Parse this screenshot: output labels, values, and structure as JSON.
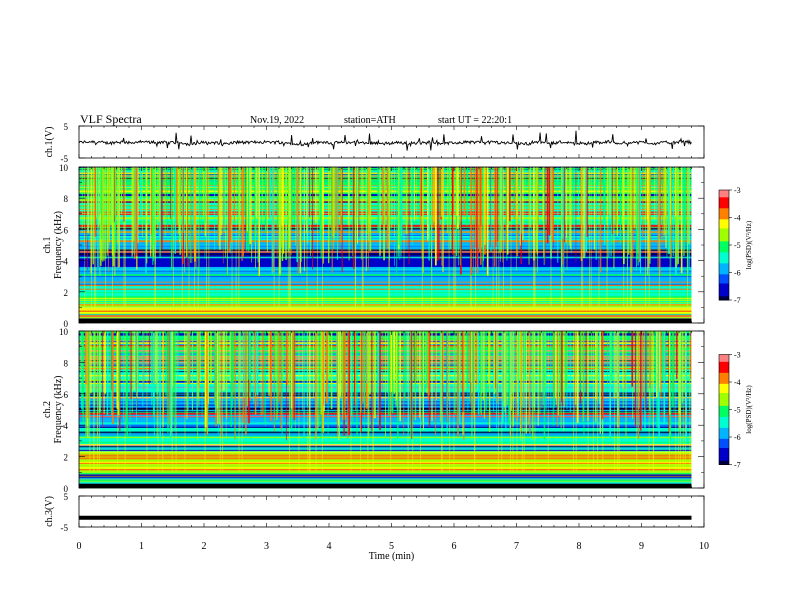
{
  "header": {
    "title": "VLF Spectra",
    "date": "Nov.19, 2022",
    "station": "station=ATH",
    "start_ut": "start UT = 22:20:1"
  },
  "colors": {
    "trace": "#000000",
    "colormap": [
      "#000040",
      "#0000c8",
      "#0050ff",
      "#00b4ff",
      "#00ffd0",
      "#00ff60",
      "#a0ff00",
      "#ffff00",
      "#ff8000",
      "#ff0000",
      "#ff8080",
      "#ffffff"
    ]
  },
  "chart_data": [
    {
      "type": "line",
      "name": "ch1-waveform",
      "ylabel": "ch.1(V)",
      "yticks": [
        "5",
        "-5"
      ],
      "ylim": [
        -5,
        5
      ],
      "xlim": [
        0,
        10
      ],
      "description": "noisy baseline near -0.2 V with frequent short spikes",
      "baseline": -0.2,
      "x_end": 9.8
    },
    {
      "type": "heatmap",
      "name": "ch1-spectrogram",
      "ylabel": "ch.1\nFrequency (kHz)",
      "ylabel_lines": [
        "ch.1",
        "Frequency (kHz)"
      ],
      "yticks": [
        "0",
        "2",
        "4",
        "6",
        "8",
        "10"
      ],
      "ylim": [
        0,
        10
      ],
      "xlim": [
        0,
        10
      ],
      "x_end": 9.8,
      "colorbar": {
        "label": "log(PSD)(V²/Hz)",
        "ticks": [
          "-3",
          "-4",
          "-5",
          "-6",
          "-7"
        ],
        "range": [
          -7,
          -3
        ]
      },
      "bands": [
        {
          "from_khz": 0.0,
          "to_khz": 0.3,
          "level": -7.0
        },
        {
          "from_khz": 0.3,
          "to_khz": 1.0,
          "level": -4.5
        },
        {
          "from_khz": 1.0,
          "to_khz": 2.4,
          "level": -5.3
        },
        {
          "from_khz": 2.4,
          "to_khz": 3.6,
          "level": -6.0
        },
        {
          "from_khz": 3.6,
          "to_khz": 4.6,
          "level": -6.6
        },
        {
          "from_khz": 4.6,
          "to_khz": 6.0,
          "level": -5.9
        },
        {
          "from_khz": 6.0,
          "to_khz": 8.0,
          "level": -5.4
        },
        {
          "from_khz": 8.0,
          "to_khz": 10.0,
          "level": -4.9
        }
      ]
    },
    {
      "type": "heatmap",
      "name": "ch2-spectrogram",
      "ylabel": "ch.2\nFrequency (kHz)",
      "ylabel_lines": [
        "ch.2",
        "Frequency (kHz)"
      ],
      "yticks": [
        "0",
        "2",
        "4",
        "6",
        "8",
        "10"
      ],
      "ylim": [
        0,
        10
      ],
      "xlim": [
        0,
        10
      ],
      "x_end": 9.8,
      "colorbar": {
        "label": "log(PSD)(V²/Hz)",
        "ticks": [
          "-3",
          "-4",
          "-5",
          "-6",
          "-7"
        ],
        "range": [
          -7,
          -3
        ]
      },
      "bands": [
        {
          "from_khz": 0.0,
          "to_khz": 0.3,
          "level": -7.0
        },
        {
          "from_khz": 0.3,
          "to_khz": 1.0,
          "level": -4.8
        },
        {
          "from_khz": 1.0,
          "to_khz": 2.4,
          "level": -4.6
        },
        {
          "from_khz": 2.4,
          "to_khz": 4.0,
          "level": -5.5
        },
        {
          "from_khz": 4.0,
          "to_khz": 6.0,
          "level": -5.8
        },
        {
          "from_khz": 6.0,
          "to_khz": 8.0,
          "level": -5.3
        },
        {
          "from_khz": 8.0,
          "to_khz": 10.0,
          "level": -5.0
        }
      ]
    },
    {
      "type": "line",
      "name": "ch3-waveform",
      "ylabel": "ch.3(V)",
      "yticks": [
        "5",
        "-5"
      ],
      "ylim": [
        -5,
        5
      ],
      "xlim": [
        0,
        10
      ],
      "baseline": -2.0,
      "x_end": 9.8,
      "xlabel": "Time (min)",
      "xticks": [
        "0",
        "1",
        "2",
        "3",
        "4",
        "5",
        "6",
        "7",
        "8",
        "9",
        "10"
      ]
    }
  ]
}
